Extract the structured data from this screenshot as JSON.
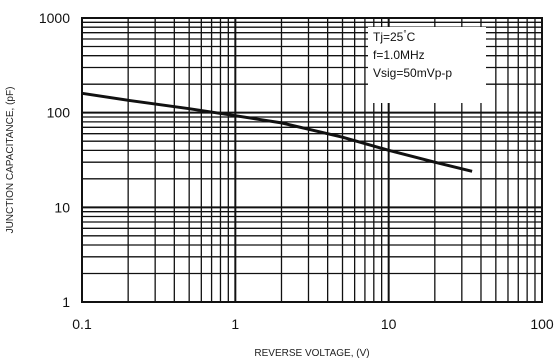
{
  "chart_data": {
    "type": "line",
    "xlabel": "REVERSE VOLTAGE, (V)",
    "ylabel": "JUNCTION CAPACITANCE, (pF)",
    "x_scale": "log",
    "y_scale": "log",
    "xlim": [
      0.1,
      100
    ],
    "ylim": [
      1,
      1000
    ],
    "x_ticks": [
      "0.1",
      "1",
      "10",
      "100"
    ],
    "y_ticks": [
      "1",
      "10",
      "100",
      "1000"
    ],
    "grid": true,
    "series": [
      {
        "x": [
          0.1,
          0.2,
          0.5,
          1,
          2,
          5,
          10,
          20,
          35
        ],
        "y": [
          160,
          135,
          110,
          93,
          78,
          55,
          40,
          30,
          24
        ]
      }
    ],
    "annotation": [
      "Tj=25°C",
      "f=1.0MHz",
      "Vsig=50mVp-p"
    ]
  }
}
